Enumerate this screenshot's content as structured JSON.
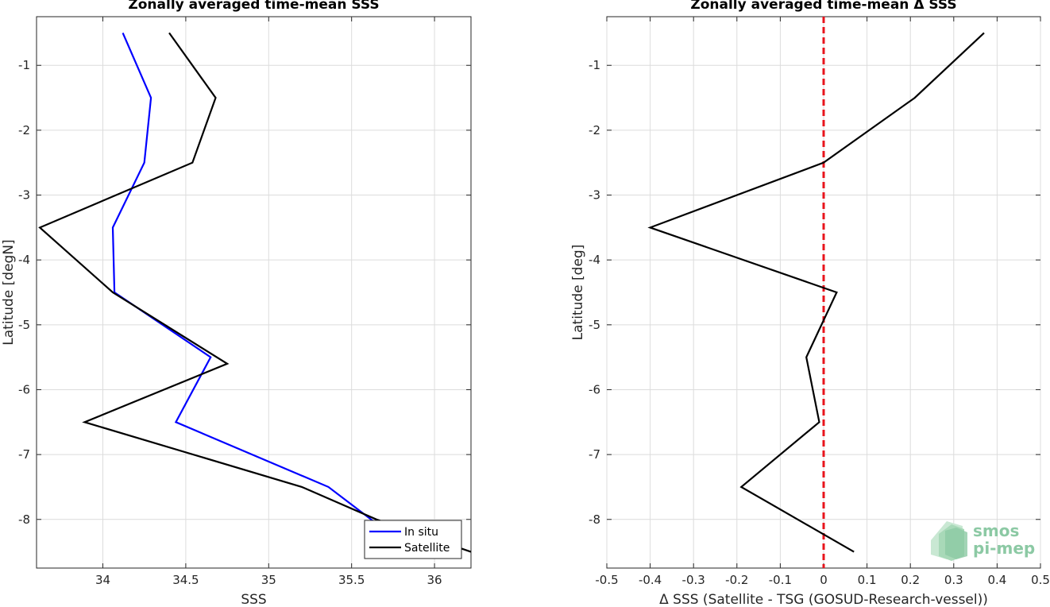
{
  "chart_data": [
    {
      "type": "line",
      "title": "Zonally averaged time-mean SSS",
      "xlabel": "SSS",
      "ylabel": "Latitude [degN]",
      "xlim": [
        33.6,
        36.22
      ],
      "ylim": [
        -8.75,
        -0.25
      ],
      "xticks": [
        34,
        34.5,
        35,
        35.5,
        36
      ],
      "xtick_labels": [
        "34",
        "34.5",
        "35",
        "35.5",
        "36"
      ],
      "yticks": [
        -1,
        -2,
        -3,
        -4,
        -5,
        -6,
        -7,
        -8
      ],
      "ytick_labels": [
        "-1",
        "-2",
        "-3",
        "-4",
        "-5",
        "-6",
        "-7",
        "-8"
      ],
      "grid": true,
      "legend": "bottom-right",
      "series": [
        {
          "name": "In situ",
          "color": "#0000ff",
          "points": [
            [
              34.12,
              -0.5
            ],
            [
              34.29,
              -1.5
            ],
            [
              34.25,
              -2.5
            ],
            [
              34.06,
              -3.5
            ],
            [
              34.07,
              -4.5
            ],
            [
              34.65,
              -5.5
            ],
            [
              34.44,
              -6.5
            ],
            [
              35.36,
              -7.5
            ],
            [
              35.72,
              -8.2
            ]
          ]
        },
        {
          "name": "Satellite",
          "color": "#000000",
          "points": [
            [
              34.4,
              -0.5
            ],
            [
              34.68,
              -1.5
            ],
            [
              34.54,
              -2.5
            ],
            [
              33.62,
              -3.5
            ],
            [
              34.06,
              -4.5
            ],
            [
              34.75,
              -5.6
            ],
            [
              33.89,
              -6.5
            ],
            [
              35.2,
              -7.5
            ],
            [
              35.65,
              -8.0
            ],
            [
              36.22,
              -8.5
            ]
          ]
        }
      ]
    },
    {
      "type": "line",
      "title": "Zonally averaged time-mean Δ SSS",
      "xlabel": "Δ SSS (Satellite - TSG (GOSUD-Research-vessel))",
      "ylabel": "Latitude [deg]",
      "xlim": [
        -0.5,
        0.5
      ],
      "ylim": [
        -8.75,
        -0.25
      ],
      "xticks": [
        -0.5,
        -0.4,
        -0.3,
        -0.2,
        -0.1,
        0,
        0.1,
        0.2,
        0.3,
        0.4,
        0.5
      ],
      "xtick_labels": [
        "-0.5",
        "-0.4",
        "-0.3",
        "-0.2",
        "-0.1",
        "0",
        "0.1",
        "0.2",
        "0.3",
        "0.4",
        "0.5"
      ],
      "yticks": [
        -1,
        -2,
        -3,
        -4,
        -5,
        -6,
        -7,
        -8
      ],
      "ytick_labels": [
        "-1",
        "-2",
        "-3",
        "-4",
        "-5",
        "-6",
        "-7",
        "-8"
      ],
      "grid": true,
      "reference_line": {
        "x": 0,
        "color": "#e8141c",
        "style": "dashed"
      },
      "series": [
        {
          "color": "#000000",
          "points": [
            [
              0.37,
              -0.5
            ],
            [
              0.21,
              -1.5
            ],
            [
              0.0,
              -2.5
            ],
            [
              -0.4,
              -3.5
            ],
            [
              0.03,
              -4.5
            ],
            [
              -0.04,
              -5.5
            ],
            [
              -0.01,
              -6.5
            ],
            [
              -0.19,
              -7.5
            ],
            [
              0.07,
              -8.5
            ]
          ]
        }
      ]
    }
  ],
  "logo": {
    "line1": "smos",
    "line2": "pi-mep",
    "color": "#8cc9a4"
  }
}
